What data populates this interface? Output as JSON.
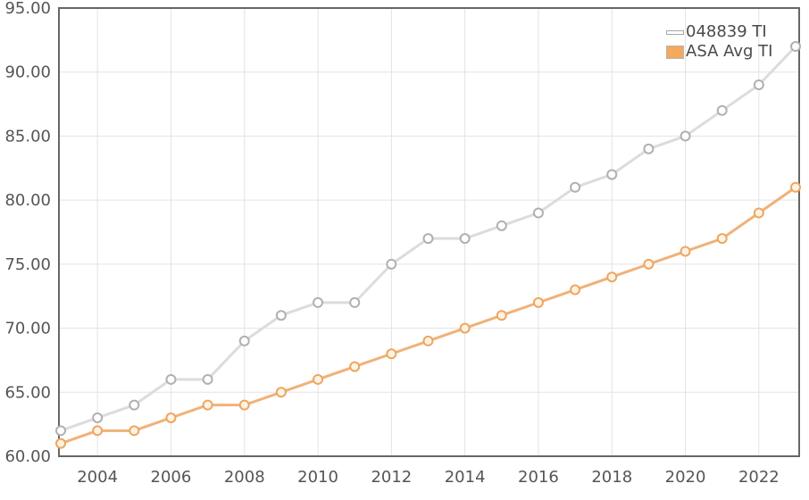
{
  "chart_data": {
    "type": "line",
    "title": "",
    "xlabel": "",
    "ylabel": "",
    "x": [
      2003,
      2004,
      2005,
      2006,
      2007,
      2008,
      2009,
      2010,
      2011,
      2012,
      2013,
      2014,
      2015,
      2016,
      2017,
      2018,
      2019,
      2020,
      2021,
      2022,
      2023
    ],
    "x_tick_years": [
      2004,
      2006,
      2008,
      2010,
      2012,
      2014,
      2016,
      2018,
      2020,
      2022
    ],
    "ylim": [
      60,
      95
    ],
    "y_tick_step": 5,
    "y_tick_labels": [
      "60.00",
      "65.00",
      "70.00",
      "75.00",
      "80.00",
      "85.00",
      "90.00",
      "95.00"
    ],
    "grid": true,
    "legend_position": "top-right",
    "series": [
      {
        "name": "048839 TI",
        "values": [
          62,
          63,
          64,
          66,
          66,
          69,
          71,
          72,
          72,
          75,
          77,
          77,
          78,
          79,
          81,
          82,
          84,
          85,
          87,
          89,
          92
        ],
        "line_color": "#dcdcdc",
        "marker_stroke": "#b0b0b0",
        "marker_fill": "#ffffff",
        "swatch_style": "line",
        "swatch_fill": "#ffffff"
      },
      {
        "name": "ASA Avg TI",
        "values": [
          61,
          62,
          62,
          63,
          64,
          64,
          65,
          66,
          67,
          68,
          69,
          70,
          71,
          72,
          73,
          74,
          75,
          76,
          77,
          79,
          81
        ],
        "line_color": "#f1b178",
        "marker_stroke": "#eda662",
        "marker_fill": "#fdf3e3",
        "swatch_style": "box",
        "swatch_fill": "#f4a95c"
      }
    ],
    "colors": {
      "axis_border": "#666666",
      "gridline": "#e3e3e3",
      "tick_label": "#555555",
      "plot_background": "#ffffff"
    }
  }
}
